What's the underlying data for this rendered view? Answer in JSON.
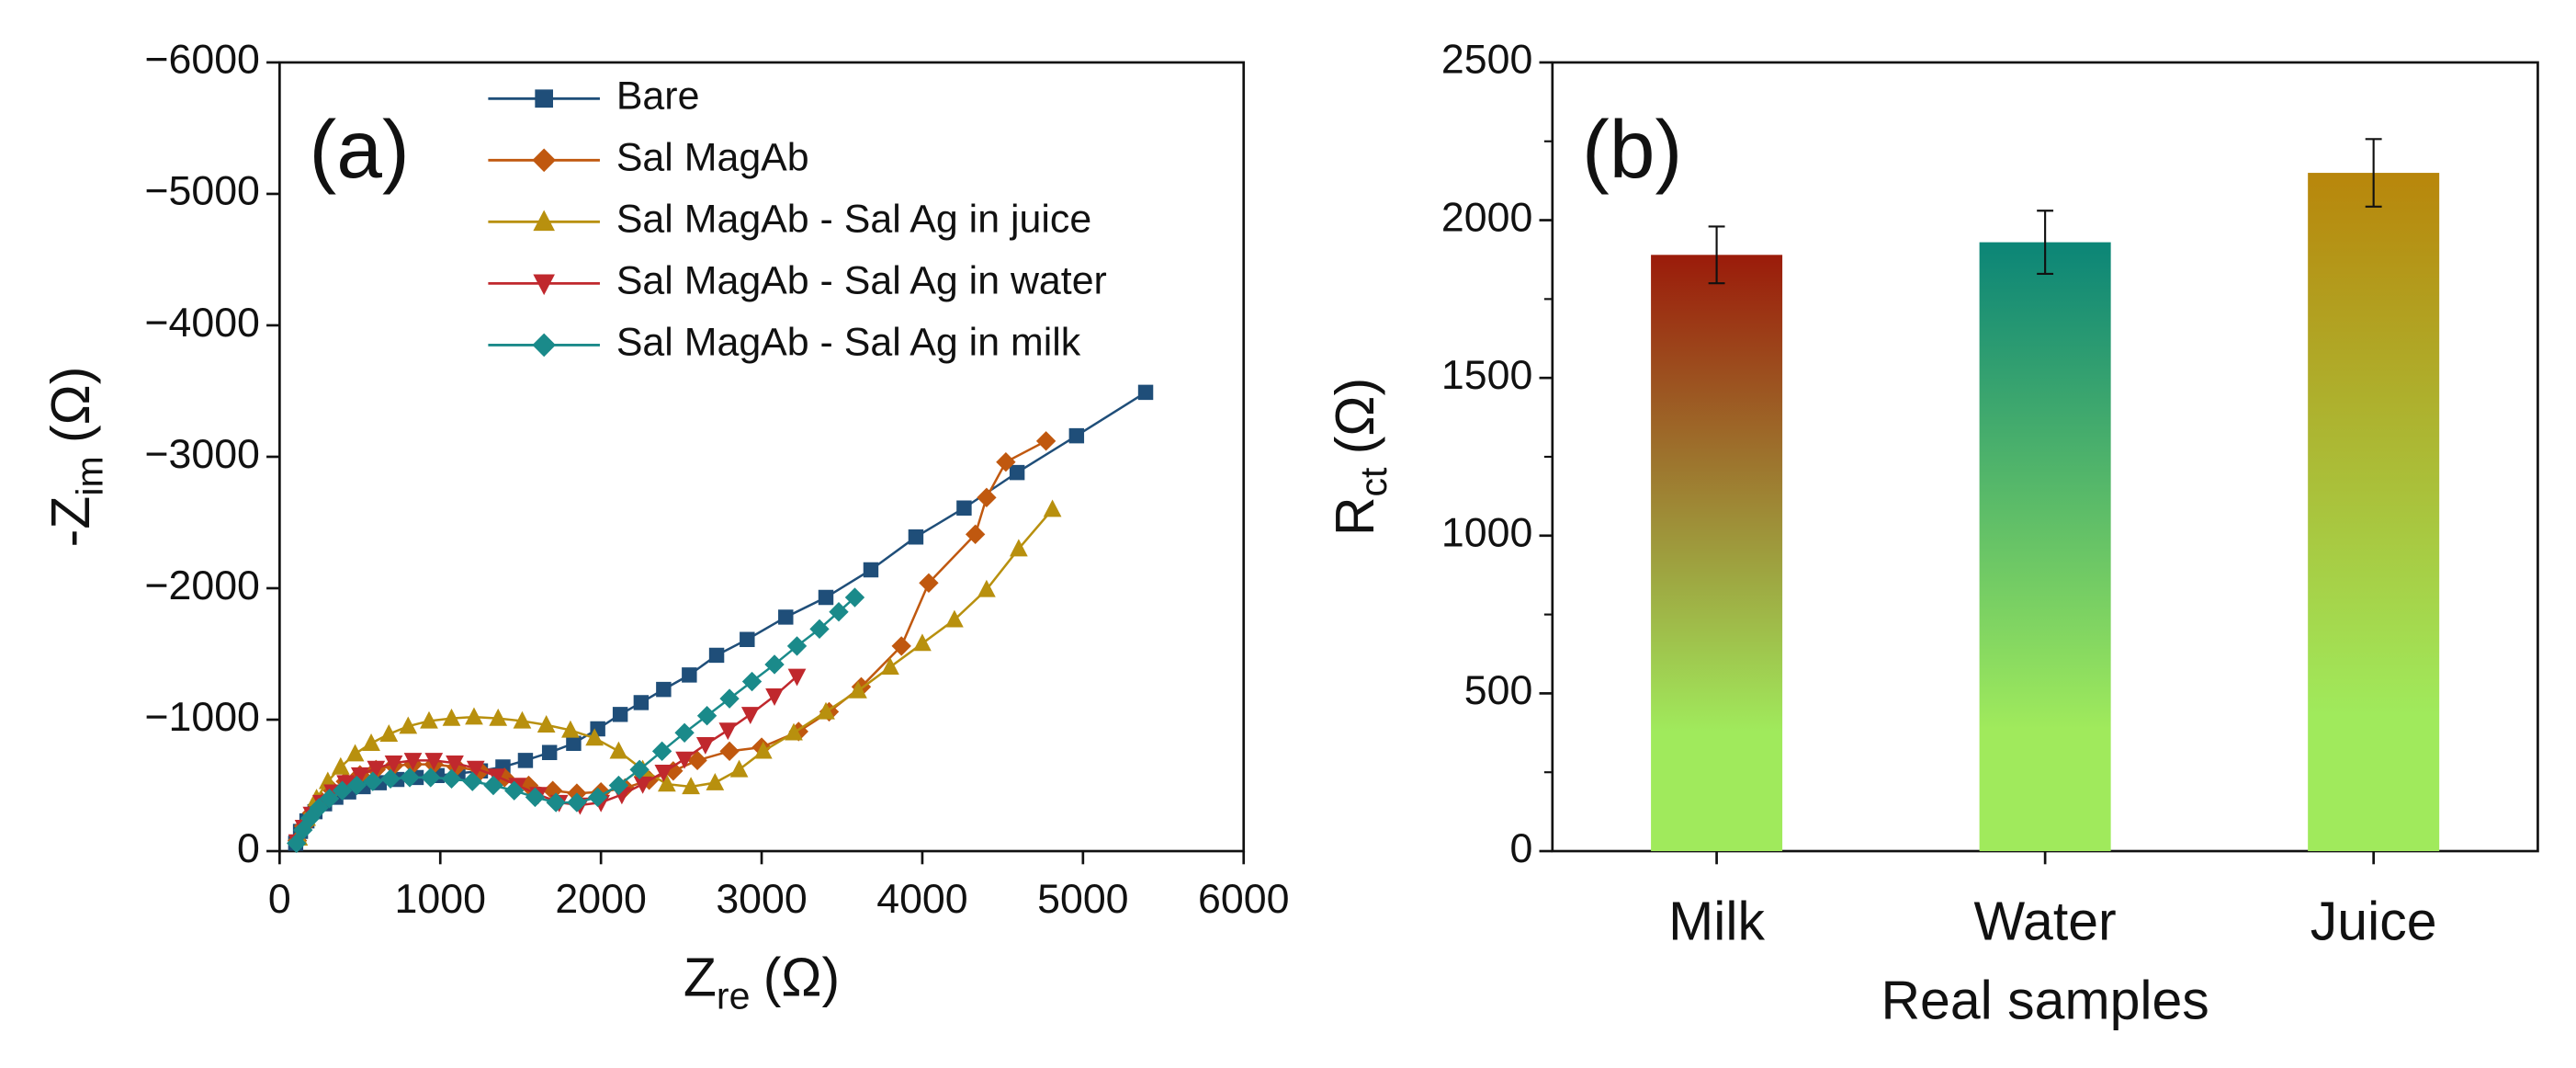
{
  "chart_data": [
    {
      "type": "line",
      "annotation": "(a)",
      "xlabel": [
        "Z",
        "re",
        "(Ω)"
      ],
      "ylabel": [
        "-Z",
        "im",
        "(Ω)"
      ],
      "xlim": [
        0,
        6000
      ],
      "xticks": [
        0,
        1000,
        2000,
        3000,
        4000,
        5000,
        6000
      ],
      "ylim": [
        0,
        -6000
      ],
      "yticks": [
        0,
        {
          "value": -1000,
          "label": "−1000"
        },
        {
          "value": -2000,
          "label": "−2000"
        },
        {
          "value": -3000,
          "label": "−3000"
        },
        {
          "value": -4000,
          "label": "−4000"
        },
        {
          "value": -5000,
          "label": "−5000"
        },
        {
          "value": -6000,
          "label": "−6000"
        }
      ],
      "legend": "upper center",
      "series": [
        {
          "name": "Bare",
          "color": "#1f4e79",
          "marker": "square",
          "x": [
            100,
            130,
            170,
            220,
            280,
            350,
            430,
            520,
            620,
            730,
            850,
            980,
            1110,
            1250,
            1390,
            1530,
            1680,
            1830,
            1980,
            2120,
            2250,
            2390,
            2550,
            2720,
            2910,
            3150,
            3400,
            3680,
            3960,
            4260,
            4590,
            4960,
            5390
          ],
          "values": [
            -60,
            -150,
            -230,
            -300,
            -360,
            -410,
            -450,
            -490,
            -520,
            -545,
            -560,
            -575,
            -590,
            -610,
            -640,
            -690,
            -750,
            -820,
            -930,
            -1040,
            -1130,
            -1230,
            -1340,
            -1490,
            -1610,
            -1780,
            -1930,
            -2140,
            -2390,
            -2610,
            -2880,
            -3160,
            -3490
          ]
        },
        {
          "name": "Sal MagAb",
          "color": "#c0580f",
          "marker": "diamond",
          "x": [
            110,
            150,
            200,
            260,
            330,
            410,
            500,
            600,
            710,
            830,
            960,
            1100,
            1250,
            1400,
            1550,
            1700,
            1850,
            2000,
            2150,
            2300,
            2450,
            2600,
            2800,
            3000,
            3230,
            3420,
            3620,
            3870,
            4040,
            4330,
            4400,
            4520,
            4770
          ],
          "values": [
            -80,
            -190,
            -290,
            -380,
            -460,
            -530,
            -580,
            -620,
            -650,
            -660,
            -660,
            -640,
            -610,
            -560,
            -500,
            -460,
            -440,
            -450,
            -480,
            -540,
            -610,
            -690,
            -760,
            -790,
            -910,
            -1060,
            -1250,
            -1560,
            -2040,
            -2410,
            -2690,
            -2960,
            -3120
          ]
        },
        {
          "name": "Sal MagAb - Sal Ag in juice",
          "color": "#b8900e",
          "marker": "triangle-up",
          "x": [
            120,
            170,
            230,
            300,
            380,
            470,
            570,
            680,
            800,
            930,
            1070,
            1210,
            1360,
            1510,
            1660,
            1810,
            1960,
            2110,
            2260,
            2410,
            2560,
            2710,
            2860,
            3010,
            3200,
            3400,
            3600,
            3800,
            4000,
            4200,
            4400,
            4600,
            4810
          ],
          "values": [
            -100,
            -250,
            -400,
            -530,
            -640,
            -740,
            -820,
            -890,
            -950,
            -990,
            -1010,
            -1020,
            -1010,
            -990,
            -960,
            -920,
            -860,
            -760,
            -620,
            -510,
            -490,
            -520,
            -620,
            -760,
            -900,
            -1060,
            -1220,
            -1400,
            -1580,
            -1760,
            -1990,
            -2300,
            -2600
          ]
        },
        {
          "name": "Sal MagAb - Sal Ag in water",
          "color": "#c0282d",
          "marker": "triangle-down",
          "x": [
            110,
            150,
            200,
            260,
            330,
            410,
            500,
            600,
            710,
            830,
            960,
            1090,
            1220,
            1350,
            1480,
            1610,
            1740,
            1870,
            2000,
            2130,
            2260,
            2390,
            2520,
            2650,
            2790,
            2930,
            3080,
            3220
          ],
          "values": [
            -70,
            -180,
            -280,
            -370,
            -450,
            -520,
            -580,
            -630,
            -670,
            -690,
            -690,
            -670,
            -630,
            -570,
            -500,
            -430,
            -370,
            -350,
            -370,
            -430,
            -510,
            -600,
            -700,
            -810,
            -920,
            -1040,
            -1180,
            -1330
          ]
        },
        {
          "name": "Sal MagAb - Sal Ag in milk",
          "color": "#1a8a8a",
          "marker": "diamond",
          "x": [
            105,
            145,
            190,
            245,
            310,
            390,
            480,
            580,
            690,
            810,
            940,
            1070,
            1200,
            1330,
            1460,
            1590,
            1720,
            1850,
            1980,
            2110,
            2240,
            2380,
            2520,
            2660,
            2800,
            2940,
            3080,
            3220,
            3360,
            3480,
            3580
          ],
          "values": [
            -60,
            -160,
            -250,
            -330,
            -400,
            -460,
            -500,
            -530,
            -550,
            -560,
            -560,
            -550,
            -530,
            -500,
            -460,
            -410,
            -370,
            -370,
            -410,
            -500,
            -620,
            -760,
            -900,
            -1030,
            -1160,
            -1290,
            -1420,
            -1560,
            -1690,
            -1820,
            -1930
          ]
        }
      ]
    },
    {
      "type": "bar",
      "annotation": "(b)",
      "xlabel": "Real samples",
      "ylabel": [
        "R",
        "ct",
        "(Ω)"
      ],
      "categories": [
        "Milk",
        "Water",
        "Juice"
      ],
      "values": [
        1890,
        1930,
        2150
      ],
      "errors": [
        90,
        100,
        107
      ],
      "colors": [
        "#9b1b0a",
        "#0b8577",
        "#b8860b"
      ],
      "gradient_bottom_color": "#a0ea5c",
      "ylim": [
        0,
        2500
      ],
      "yticks": [
        0,
        500,
        1000,
        1500,
        2000,
        2500
      ],
      "yminorticks": [
        250,
        750,
        1250,
        1750,
        2250
      ]
    }
  ]
}
